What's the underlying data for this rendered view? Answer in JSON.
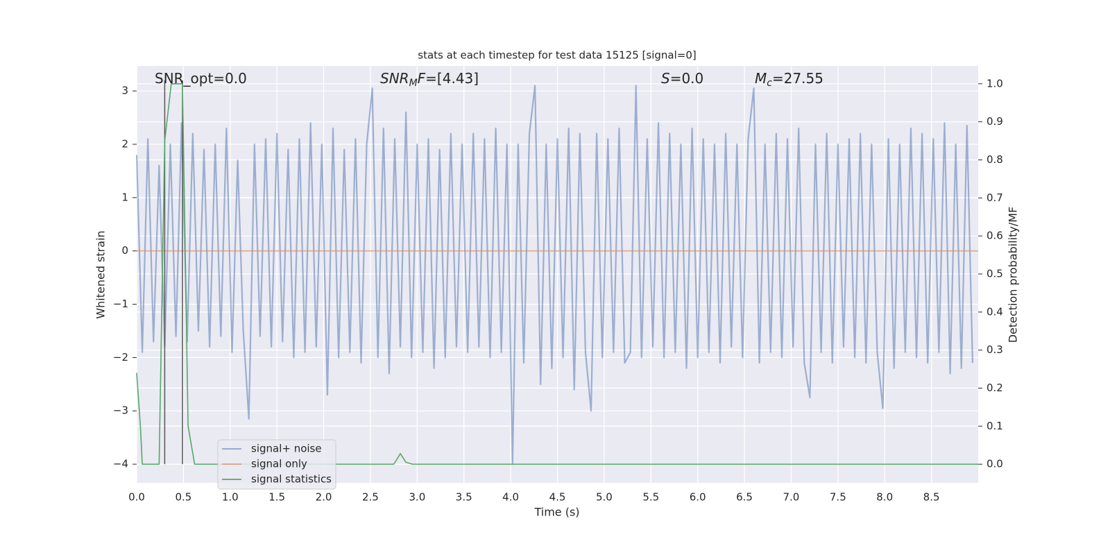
{
  "chart_data": {
    "type": "line",
    "title": "stats at each timestep for test data 15125 [signal=0]",
    "xlabel": "Time (s)",
    "ylabel": "Whitened strain",
    "y2label": "Detection probability/MF",
    "xlim": [
      0,
      9.0
    ],
    "ylim": [
      -4.35,
      3.47
    ],
    "y2lim": [
      -0.049,
      1.047
    ],
    "xticks": [
      {
        "value": 0,
        "label": "0.0"
      },
      0.5,
      {
        "value": 1,
        "label": "1.0"
      },
      1.5,
      {
        "value": 2,
        "label": "2.0"
      },
      2.5,
      {
        "value": 3,
        "label": "3.0"
      },
      3.5,
      {
        "value": 4,
        "label": "4.0"
      },
      4.5,
      {
        "value": 5,
        "label": "5.0"
      },
      5.5,
      {
        "value": 6,
        "label": "6.0"
      },
      6.5,
      {
        "value": 7,
        "label": "7.0"
      },
      7.5,
      {
        "value": 8,
        "label": "8.0"
      },
      8.5
    ],
    "yticks": [
      {
        "value": -4,
        "label": "−4"
      },
      {
        "value": -3,
        "label": "−3"
      },
      {
        "value": -2,
        "label": "−2"
      },
      {
        "value": -1,
        "label": "−1"
      },
      0,
      1,
      2,
      3
    ],
    "y2ticks": [
      {
        "value": 0,
        "label": "0.0"
      },
      0.1,
      0.2,
      0.3,
      0.4,
      0.5,
      0.6,
      0.7,
      0.8,
      0.9,
      {
        "value": 1,
        "label": "1.0"
      }
    ],
    "grid": true,
    "legend": "lower left",
    "series": [
      {
        "name": "signal+ noise",
        "color": "#4c72b0",
        "axis": "y",
        "x": [
          0,
          0.06,
          0.12,
          0.18,
          0.24,
          0.3,
          0.36,
          0.42,
          0.48,
          0.54,
          0.6,
          0.66,
          0.72,
          0.78,
          0.84,
          0.9,
          0.96,
          1.02,
          1.08,
          1.14,
          1.2,
          1.26,
          1.32,
          1.38,
          1.44,
          1.5,
          1.56,
          1.62,
          1.68,
          1.74,
          1.8,
          1.86,
          1.92,
          1.98,
          2.04,
          2.1,
          2.16,
          2.22,
          2.28,
          2.34,
          2.4,
          2.46,
          2.52,
          2.58,
          2.64,
          2.7,
          2.76,
          2.82,
          2.88,
          2.94,
          3.0,
          3.06,
          3.12,
          3.18,
          3.24,
          3.3,
          3.36,
          3.42,
          3.48,
          3.54,
          3.6,
          3.66,
          3.72,
          3.78,
          3.84,
          3.9,
          3.96,
          4.02,
          4.08,
          4.14,
          4.2,
          4.26,
          4.32,
          4.38,
          4.44,
          4.5,
          4.56,
          4.62,
          4.68,
          4.74,
          4.8,
          4.86,
          4.92,
          4.98,
          5.04,
          5.1,
          5.16,
          5.22,
          5.28,
          5.34,
          5.4,
          5.46,
          5.52,
          5.58,
          5.64,
          5.7,
          5.76,
          5.82,
          5.88,
          5.94,
          6.0,
          6.06,
          6.12,
          6.18,
          6.24,
          6.3,
          6.36,
          6.42,
          6.48,
          6.54,
          6.6,
          6.66,
          6.72,
          6.78,
          6.84,
          6.9,
          6.96,
          7.02,
          7.08,
          7.14,
          7.2,
          7.26,
          7.32,
          7.38,
          7.44,
          7.5,
          7.56,
          7.62,
          7.68,
          7.74,
          7.8,
          7.86,
          7.92,
          7.98,
          8.04,
          8.1,
          8.16,
          8.22,
          8.28,
          8.34,
          8.4,
          8.46,
          8.52,
          8.58,
          8.64,
          8.7,
          8.76,
          8.82,
          8.88,
          8.94
        ],
        "values": [
          1.8,
          -1.9,
          2.1,
          -1.7,
          1.6,
          -1.8,
          2.0,
          -1.6,
          2.4,
          -1.7,
          2.2,
          -1.5,
          1.9,
          -1.8,
          2.0,
          -1.6,
          2.3,
          -1.9,
          1.7,
          -1.5,
          -3.15,
          2.0,
          -1.6,
          2.1,
          -1.8,
          2.2,
          -1.7,
          1.9,
          -2.0,
          2.1,
          -1.9,
          2.4,
          -1.8,
          2.0,
          -2.7,
          2.3,
          -2.0,
          1.9,
          -1.9,
          2.1,
          -2.1,
          2.0,
          3.05,
          -2.0,
          2.3,
          -2.3,
          2.1,
          -1.8,
          2.6,
          -2.0,
          2.0,
          -1.9,
          2.1,
          -2.2,
          1.9,
          -2.0,
          2.2,
          -1.8,
          2.0,
          -1.9,
          2.2,
          -1.8,
          2.1,
          -2.0,
          2.3,
          -1.9,
          2.0,
          -4.0,
          2.0,
          -2.1,
          2.2,
          3.1,
          -2.5,
          2.0,
          -2.2,
          2.1,
          -2.0,
          2.3,
          -2.6,
          2.2,
          -1.9,
          -3.0,
          2.2,
          -2.0,
          2.1,
          -1.9,
          2.3,
          -2.1,
          -1.9,
          3.1,
          -2.0,
          2.1,
          -1.8,
          2.4,
          -2.0,
          2.2,
          -1.9,
          2.0,
          -2.2,
          2.3,
          -2.0,
          2.1,
          -1.9,
          2.0,
          -2.1,
          2.2,
          -1.8,
          2.0,
          -2.0,
          2.1,
          3.05,
          -2.1,
          2.0,
          -1.9,
          2.2,
          -2.0,
          2.1,
          -1.8,
          2.3,
          -2.1,
          -2.75,
          2.0,
          -1.9,
          2.2,
          -2.1,
          2.0,
          -1.8,
          2.1,
          -2.0,
          2.2,
          -2.1,
          2.0,
          -1.9,
          -2.95,
          2.1,
          -2.2,
          2.0,
          -1.9,
          2.3,
          -2.0,
          2.2,
          -2.1,
          2.1,
          -1.9,
          2.4,
          -2.3,
          2.0,
          -2.2,
          2.35,
          -2.1
        ]
      },
      {
        "name": "signal only",
        "color": "#dd8452",
        "axis": "y",
        "x": [
          0,
          9.0
        ],
        "values": [
          0,
          0
        ]
      },
      {
        "name": "signal statistics",
        "color": "#55a868",
        "axis": "y2",
        "x": [
          0,
          0.04,
          0.06,
          0.24,
          0.3,
          0.37,
          0.49,
          0.55,
          0.62,
          2.75,
          2.82,
          2.88,
          2.95,
          9.0
        ],
        "values": [
          0.24,
          0.1,
          0.0,
          0.0,
          0.85,
          1.0,
          1.0,
          0.1,
          0.0,
          0.0,
          0.028,
          0.005,
          0.0,
          0.0
        ]
      }
    ],
    "vlines": {
      "x": [
        0.3,
        0.49
      ],
      "ymin": -4,
      "ymax": 3.2,
      "color": "#555555"
    },
    "annotations": [
      [
        {
          "text": "SNR_opt=0.0"
        }
      ],
      [
        {
          "text": "SNR",
          "italic": true
        },
        {
          "text": "M",
          "italic": true,
          "sub": true
        },
        {
          "text": "F",
          "italic": true
        },
        {
          "text": "=[4.43]"
        }
      ],
      [
        {
          "text": "S",
          "italic": true
        },
        {
          "text": "=0.0"
        }
      ],
      [
        {
          "text": "M",
          "italic": true
        },
        {
          "text": "c",
          "italic": true,
          "sub": true
        },
        {
          "text": "=27.55"
        }
      ]
    ]
  }
}
